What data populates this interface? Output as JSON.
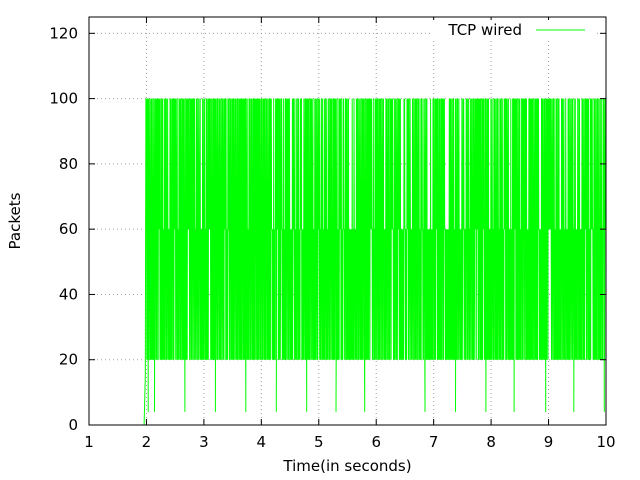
{
  "chart_data": {
    "type": "line",
    "title": "",
    "xlabel": "Time(in seconds)",
    "ylabel": "Packets",
    "xlim": [
      1,
      10
    ],
    "ylim": [
      0,
      125
    ],
    "xticks": [
      1,
      2,
      3,
      4,
      5,
      6,
      7,
      8,
      9,
      10
    ],
    "yticks": [
      0,
      20,
      40,
      60,
      80,
      100,
      120
    ],
    "grid": true,
    "legend": {
      "position": "top-right"
    },
    "series": [
      {
        "name": "TCP wired",
        "color": "#00ff00",
        "levels": [
          20,
          60,
          100
        ],
        "x_range": [
          1.98,
          10.0
        ],
        "dips": [
          {
            "x": 2.03,
            "y": 4
          },
          {
            "x": 2.14,
            "y": 4
          },
          {
            "x": 2.67,
            "y": 4
          },
          {
            "x": 3.2,
            "y": 4
          },
          {
            "x": 3.73,
            "y": 4
          },
          {
            "x": 4.26,
            "y": 4
          },
          {
            "x": 4.79,
            "y": 4
          },
          {
            "x": 5.3,
            "y": 4
          },
          {
            "x": 5.8,
            "y": 4
          },
          {
            "x": 6.85,
            "y": 4
          },
          {
            "x": 7.38,
            "y": 4
          },
          {
            "x": 7.91,
            "y": 4
          },
          {
            "x": 8.4,
            "y": 4
          },
          {
            "x": 8.95,
            "y": 4
          },
          {
            "x": 9.44,
            "y": 4
          },
          {
            "x": 9.97,
            "y": 4
          }
        ]
      }
    ]
  }
}
